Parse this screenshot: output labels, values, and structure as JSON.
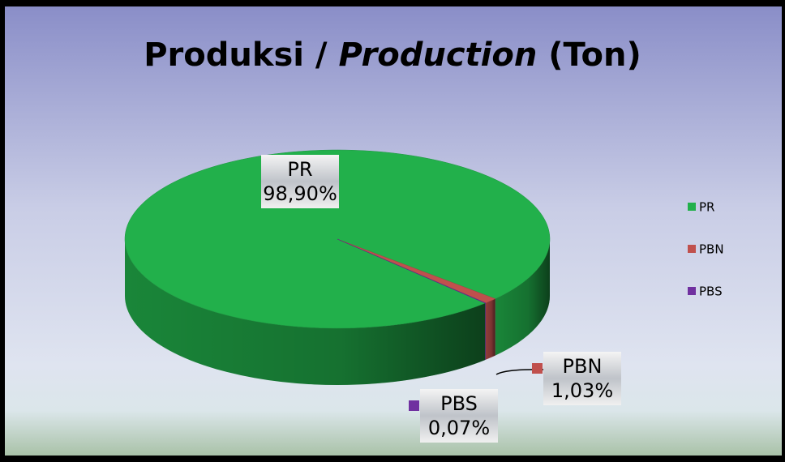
{
  "chart_data": {
    "type": "pie",
    "title": [
      {
        "text": "Produksi / "
      },
      {
        "text": "Production",
        "italic": true
      },
      {
        "text": " (Ton)"
      }
    ],
    "categories": [
      "PR",
      "PBN",
      "PBS"
    ],
    "values": [
      98.9,
      1.03,
      0.07
    ],
    "value_labels": [
      "98,90%",
      "1,03%",
      "0,07%"
    ],
    "colors": [
      "#22b04b",
      "#c0504d",
      "#7030a0"
    ],
    "legend": "right"
  }
}
